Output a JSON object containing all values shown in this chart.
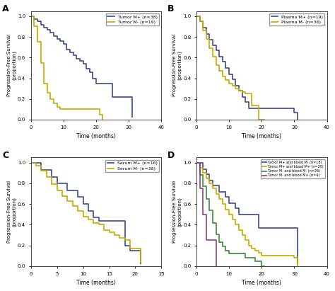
{
  "bg_color": "#FFFFFF",
  "ax_bg_color": "#FFFFFF",
  "panels": {
    "A": {
      "title": "A",
      "legend": [
        "Tumor M+ (n=38)",
        "Tumor M- (n=19)"
      ],
      "colors": [
        "#3B4A8A",
        "#C8A800"
      ],
      "xlim": [
        0,
        40
      ],
      "xticks": [
        0,
        10,
        20,
        30,
        40
      ],
      "ylim": [
        0,
        1.05
      ],
      "yticks": [
        0.0,
        0.2,
        0.4,
        0.6,
        0.8,
        1.0
      ],
      "xlabel": "Time (months)",
      "ylabel": "Progression-Free Survival\n(proportion)",
      "curves": [
        {
          "x": [
            0,
            1,
            2,
            3,
            4,
            5,
            6,
            7,
            8,
            9,
            10,
            11,
            12,
            13,
            14,
            15,
            16,
            17,
            18,
            19,
            20,
            21,
            25,
            30,
            31
          ],
          "y": [
            1.0,
            0.97,
            0.95,
            0.92,
            0.89,
            0.87,
            0.84,
            0.81,
            0.78,
            0.76,
            0.73,
            0.68,
            0.65,
            0.62,
            0.59,
            0.57,
            0.54,
            0.49,
            0.46,
            0.4,
            0.35,
            0.35,
            0.22,
            0.22,
            0.02
          ]
        },
        {
          "x": [
            0,
            1,
            2,
            3,
            4,
            5,
            6,
            7,
            8,
            9,
            20,
            21,
            22
          ],
          "y": [
            1.0,
            0.9,
            0.75,
            0.55,
            0.35,
            0.26,
            0.2,
            0.16,
            0.12,
            0.1,
            0.1,
            0.05,
            0.0
          ]
        }
      ]
    },
    "B": {
      "title": "B",
      "legend": [
        "Plasma M+ (n=19)",
        "Plasma M- (n=36)"
      ],
      "colors": [
        "#3B4A8A",
        "#C8A800"
      ],
      "xlim": [
        0,
        40
      ],
      "xticks": [
        0,
        10,
        20,
        30,
        40
      ],
      "ylim": [
        0,
        1.05
      ],
      "yticks": [
        0.0,
        0.2,
        0.4,
        0.6,
        0.8,
        1.0
      ],
      "xlabel": "Time (months)",
      "ylabel": "Progression-Free Survival\n(proportion)",
      "curves": [
        {
          "x": [
            0,
            1,
            2,
            3,
            4,
            5,
            6,
            7,
            8,
            9,
            10,
            11,
            12,
            13,
            14,
            15,
            16,
            17,
            18,
            19,
            20,
            25,
            30,
            31
          ],
          "y": [
            1.0,
            0.95,
            0.89,
            0.83,
            0.77,
            0.72,
            0.67,
            0.61,
            0.56,
            0.5,
            0.44,
            0.39,
            0.33,
            0.28,
            0.22,
            0.17,
            0.11,
            0.11,
            0.11,
            0.11,
            0.11,
            0.11,
            0.07,
            0.0
          ]
        },
        {
          "x": [
            0,
            1,
            2,
            3,
            4,
            5,
            6,
            7,
            8,
            9,
            10,
            11,
            12,
            13,
            14,
            15,
            16,
            17,
            18,
            19,
            20,
            21
          ],
          "y": [
            1.0,
            0.95,
            0.86,
            0.78,
            0.69,
            0.61,
            0.53,
            0.47,
            0.42,
            0.38,
            0.35,
            0.33,
            0.3,
            0.28,
            0.27,
            0.25,
            0.25,
            0.14,
            0.14,
            0.0,
            0.0,
            0.0
          ]
        }
      ]
    },
    "C": {
      "title": "C",
      "legend": [
        "Serum M+ (n=16)",
        "Serum M- (n=38)"
      ],
      "colors": [
        "#3B4A8A",
        "#C8A800"
      ],
      "xlim": [
        0,
        25
      ],
      "xticks": [
        0,
        5,
        10,
        15,
        20,
        25
      ],
      "ylim": [
        0,
        1.05
      ],
      "yticks": [
        0.0,
        0.2,
        0.4,
        0.6,
        0.8,
        1.0
      ],
      "xlabel": "Time (months)",
      "ylabel": "Progression-Free Survival\n(proportion)",
      "curves": [
        {
          "x": [
            0,
            1,
            2,
            3,
            4,
            5,
            6,
            7,
            8,
            9,
            10,
            11,
            12,
            13,
            14,
            15,
            16,
            17,
            18,
            19,
            20,
            21
          ],
          "y": [
            1.0,
            1.0,
            0.93,
            0.93,
            0.86,
            0.8,
            0.8,
            0.73,
            0.73,
            0.67,
            0.6,
            0.53,
            0.47,
            0.44,
            0.44,
            0.44,
            0.44,
            0.44,
            0.2,
            0.15,
            0.15,
            0.02
          ]
        },
        {
          "x": [
            0,
            1,
            2,
            3,
            4,
            5,
            6,
            7,
            8,
            9,
            10,
            11,
            12,
            13,
            14,
            15,
            16,
            17,
            18,
            19,
            20,
            21
          ],
          "y": [
            1.0,
            0.97,
            0.92,
            0.86,
            0.79,
            0.73,
            0.68,
            0.63,
            0.58,
            0.53,
            0.48,
            0.45,
            0.42,
            0.4,
            0.35,
            0.33,
            0.3,
            0.27,
            0.25,
            0.17,
            0.17,
            0.03
          ]
        }
      ]
    },
    "D": {
      "title": "D",
      "legend": [
        "Tumor M+ and blood M- (n=18)",
        "Tumor M+ and blood M+ (n=20)",
        "Tumor M- and blood M- (n=26)",
        "Tumor M- and blood M+ (n=4)"
      ],
      "colors": [
        "#3B4A8A",
        "#C8A800",
        "#3A8A3A",
        "#8B4080"
      ],
      "xlim": [
        0,
        40
      ],
      "xticks": [
        0,
        10,
        20,
        30,
        40
      ],
      "ylim": [
        0,
        1.05
      ],
      "yticks": [
        0.0,
        0.2,
        0.4,
        0.6,
        0.8,
        1.0
      ],
      "xlabel": "Time (months)",
      "ylabel": "Progression-Free Survival\n(proportion)",
      "curves": [
        {
          "x": [
            0,
            1,
            2,
            3,
            4,
            5,
            6,
            7,
            8,
            9,
            10,
            11,
            12,
            13,
            14,
            15,
            16,
            17,
            18,
            19,
            20,
            21,
            22,
            23,
            24,
            25,
            26,
            27,
            28,
            29,
            30,
            31
          ],
          "y": [
            1.0,
            1.0,
            0.94,
            0.89,
            0.83,
            0.78,
            0.78,
            0.72,
            0.72,
            0.67,
            0.61,
            0.61,
            0.56,
            0.5,
            0.5,
            0.5,
            0.5,
            0.5,
            0.5,
            0.37,
            0.37,
            0.37,
            0.37,
            0.37,
            0.37,
            0.37,
            0.37,
            0.37,
            0.37,
            0.37,
            0.37,
            0.02
          ]
        },
        {
          "x": [
            0,
            1,
            2,
            3,
            4,
            5,
            6,
            7,
            8,
            9,
            10,
            11,
            12,
            13,
            14,
            15,
            16,
            17,
            18,
            19,
            20,
            21,
            22,
            25,
            30,
            31
          ],
          "y": [
            1.0,
            0.95,
            0.9,
            0.85,
            0.8,
            0.75,
            0.7,
            0.65,
            0.6,
            0.55,
            0.5,
            0.45,
            0.4,
            0.35,
            0.3,
            0.25,
            0.2,
            0.17,
            0.15,
            0.13,
            0.1,
            0.1,
            0.1,
            0.1,
            0.08,
            0.0
          ]
        },
        {
          "x": [
            0,
            1,
            2,
            3,
            4,
            5,
            6,
            7,
            8,
            9,
            10,
            11,
            12,
            13,
            14,
            15,
            16,
            17,
            18,
            19,
            20,
            21
          ],
          "y": [
            1.0,
            0.88,
            0.77,
            0.65,
            0.54,
            0.42,
            0.31,
            0.23,
            0.19,
            0.15,
            0.12,
            0.12,
            0.12,
            0.12,
            0.12,
            0.08,
            0.08,
            0.08,
            0.05,
            0.05,
            0.0,
            0.0
          ]
        },
        {
          "x": [
            0,
            1,
            2,
            3,
            4,
            5,
            6
          ],
          "y": [
            1.0,
            0.75,
            0.5,
            0.25,
            0.25,
            0.25,
            0.0
          ]
        }
      ]
    }
  }
}
